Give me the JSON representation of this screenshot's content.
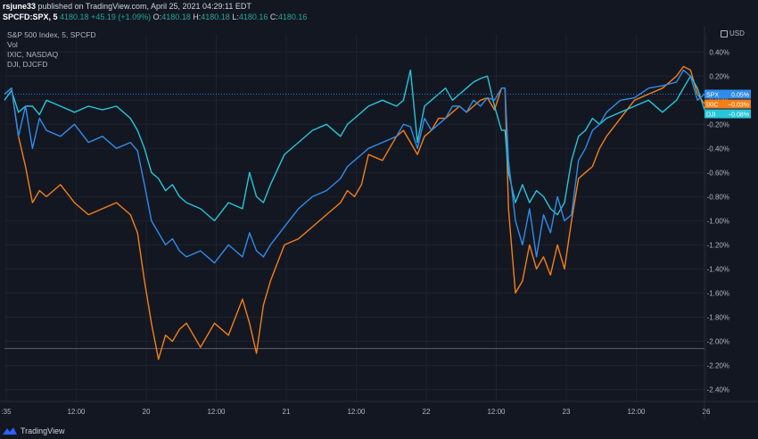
{
  "header": {
    "user": "rsjune33",
    "published": "published on TradingView.com, April 25, 2021 04:29:11 EDT",
    "symbol": "SPCFD:SPX, 5",
    "last": "4180.18",
    "change": "+45.19 (+1.09%)",
    "o_label": "O:",
    "o": "4180.18",
    "h_label": "H:",
    "h": "4180.18",
    "l_label": "L:",
    "l": "4180.16",
    "c_label": "C:",
    "c": "4180.16"
  },
  "legend": {
    "main": "S&P 500 Index, 5, SPCFD",
    "vol": "Vol",
    "ixic": "IXIC, NASDAQ",
    "dji": "DJI, DJCFD"
  },
  "currency": "USD",
  "footer": {
    "brand": "TradingView"
  },
  "colors": {
    "background": "#131722",
    "spx": "#2f8cea",
    "ixic": "#f57f17",
    "dji": "#26c6da",
    "grid": "#1e222d",
    "text": "#b2b5be"
  },
  "chart_data": {
    "type": "line",
    "x_tick_labels": [
      ":35",
      "12:00",
      "20",
      "12:00",
      "21",
      "12:00",
      "22",
      "12:00",
      "23",
      "12:00",
      "26"
    ],
    "y_tick_labels": [
      "0.40%",
      "0.20%",
      "0.00%",
      "-0.20%",
      "-0.40%",
      "-0.60%",
      "-0.80%",
      "-1.00%",
      "-1.20%",
      "-1.40%",
      "-1.60%",
      "-1.80%",
      "-2.00%",
      "-2.20%",
      "-2.40%"
    ],
    "y_ticks": [
      0.4,
      0.2,
      0.0,
      -0.2,
      -0.4,
      -0.6,
      -0.8,
      -1.0,
      -1.2,
      -1.4,
      -1.6,
      -1.8,
      -2.0,
      -2.2,
      -2.4
    ],
    "ylim": [
      -2.5,
      0.55
    ],
    "xlim": [
      0,
      100
    ],
    "hline": -2.06,
    "series": [
      {
        "name": "SPX",
        "key": "spx",
        "last_label": "0.05%",
        "x": [
          0,
          1,
          2,
          3,
          4,
          5,
          6,
          8,
          10,
          12,
          14,
          16,
          18,
          19,
          20,
          21,
          22,
          23,
          24,
          25,
          26,
          28,
          30,
          32,
          34,
          35,
          36,
          37,
          38,
          40,
          42,
          44,
          46,
          48,
          49,
          50,
          51,
          52,
          54,
          56,
          57,
          58,
          59,
          60,
          61,
          62,
          63,
          64,
          65,
          66,
          67,
          68,
          69,
          70,
          71,
          71.5,
          72,
          73,
          74,
          75,
          76,
          77,
          78,
          79,
          80,
          81,
          82,
          83,
          84,
          85,
          86,
          88,
          90,
          92,
          94,
          96,
          97,
          98,
          99,
          100
        ],
        "y": [
          0.05,
          0.1,
          -0.3,
          -0.05,
          -0.4,
          -0.15,
          -0.25,
          -0.3,
          -0.2,
          -0.35,
          -0.3,
          -0.4,
          -0.35,
          -0.42,
          -0.7,
          -1.0,
          -1.1,
          -1.2,
          -1.15,
          -1.25,
          -1.3,
          -1.25,
          -1.35,
          -1.2,
          -1.3,
          -1.1,
          -1.25,
          -1.3,
          -1.2,
          -1.05,
          -0.9,
          -0.8,
          -0.75,
          -0.65,
          -0.55,
          -0.5,
          -0.45,
          -0.4,
          -0.35,
          -0.3,
          -0.2,
          -0.22,
          -0.4,
          -0.15,
          -0.25,
          -0.2,
          -0.15,
          -0.05,
          -0.05,
          -0.1,
          0.0,
          -0.05,
          0.02,
          0.0,
          0.1,
          0.1,
          -0.5,
          -1.0,
          -1.2,
          -0.9,
          -1.3,
          -0.95,
          -1.1,
          -0.8,
          -1.0,
          -0.95,
          -0.5,
          -0.4,
          -0.25,
          -0.2,
          -0.1,
          0.0,
          0.02,
          0.1,
          0.12,
          0.15,
          0.25,
          0.2,
          0.0,
          0.05
        ]
      },
      {
        "name": "IXIC",
        "key": "ixic",
        "last_label": "-0.03%",
        "x": [
          0,
          1,
          2,
          3,
          4,
          5,
          6,
          8,
          10,
          12,
          14,
          16,
          18,
          19,
          20,
          21,
          22,
          23,
          24,
          25,
          26,
          28,
          30,
          32,
          34,
          35,
          36,
          37,
          38,
          40,
          42,
          44,
          46,
          48,
          49,
          50,
          51,
          52,
          54,
          56,
          57,
          58,
          59,
          60,
          61,
          62,
          63,
          64,
          65,
          66,
          67,
          68,
          69,
          70,
          71,
          71.5,
          72,
          73,
          74,
          75,
          76,
          77,
          78,
          79,
          80,
          81,
          82,
          83,
          84,
          85,
          86,
          88,
          90,
          92,
          94,
          96,
          97,
          98,
          99,
          100
        ],
        "y": [
          0.05,
          0.1,
          -0.3,
          -0.55,
          -0.85,
          -0.75,
          -0.8,
          -0.7,
          -0.85,
          -0.95,
          -0.9,
          -0.85,
          -0.95,
          -1.1,
          -1.5,
          -1.85,
          -2.15,
          -1.95,
          -2.0,
          -1.9,
          -1.85,
          -2.05,
          -1.85,
          -1.95,
          -1.65,
          -1.85,
          -2.1,
          -1.7,
          -1.5,
          -1.2,
          -1.15,
          -1.05,
          -0.95,
          -0.85,
          -0.75,
          -0.8,
          -0.7,
          -0.45,
          -0.5,
          -0.3,
          -0.25,
          -0.35,
          -0.45,
          -0.3,
          -0.25,
          -0.15,
          -0.15,
          -0.1,
          -0.05,
          -0.1,
          -0.05,
          0.0,
          0.02,
          -0.08,
          0.1,
          0.1,
          -0.9,
          -1.6,
          -1.5,
          -1.2,
          -1.4,
          -1.3,
          -1.45,
          -1.2,
          -1.4,
          -1.0,
          -0.65,
          -0.6,
          -0.55,
          -0.4,
          -0.3,
          -0.15,
          0.0,
          0.05,
          0.1,
          0.2,
          0.28,
          0.25,
          0.05,
          -0.03
        ]
      },
      {
        "name": "DJI",
        "key": "dji",
        "last_label": "-0.08%",
        "x": [
          0,
          1,
          2,
          3,
          4,
          5,
          6,
          8,
          10,
          12,
          14,
          16,
          18,
          19,
          20,
          21,
          22,
          23,
          24,
          25,
          26,
          28,
          30,
          32,
          34,
          35,
          36,
          37,
          38,
          40,
          42,
          44,
          46,
          48,
          49,
          50,
          51,
          52,
          54,
          56,
          57,
          58,
          59,
          60,
          61,
          62,
          63,
          64,
          65,
          66,
          67,
          68,
          69,
          70,
          71,
          71.5,
          72,
          73,
          74,
          75,
          76,
          77,
          78,
          79,
          80,
          81,
          82,
          83,
          84,
          85,
          86,
          88,
          90,
          92,
          94,
          96,
          97,
          98,
          99,
          100
        ],
        "y": [
          0.0,
          0.08,
          -0.1,
          -0.05,
          -0.05,
          -0.12,
          0.0,
          -0.05,
          -0.1,
          -0.05,
          -0.08,
          -0.05,
          -0.15,
          -0.25,
          -0.4,
          -0.6,
          -0.65,
          -0.75,
          -0.7,
          -0.8,
          -0.85,
          -0.9,
          -1.0,
          -0.85,
          -0.9,
          -0.6,
          -0.8,
          -0.85,
          -0.7,
          -0.45,
          -0.35,
          -0.25,
          -0.2,
          -0.3,
          -0.2,
          -0.15,
          -0.1,
          -0.05,
          0.0,
          -0.05,
          0.0,
          0.25,
          -0.35,
          -0.05,
          0.0,
          0.05,
          0.1,
          0.0,
          0.05,
          0.1,
          0.15,
          0.18,
          0.2,
          -0.05,
          -0.25,
          -0.25,
          -0.6,
          -0.85,
          -0.7,
          -0.85,
          -0.75,
          -0.8,
          -0.9,
          -0.95,
          -0.85,
          -0.5,
          -0.3,
          -0.25,
          -0.15,
          -0.2,
          -0.15,
          -0.1,
          -0.05,
          0.0,
          -0.1,
          0.0,
          0.1,
          0.2,
          0.1,
          -0.08
        ]
      }
    ]
  }
}
